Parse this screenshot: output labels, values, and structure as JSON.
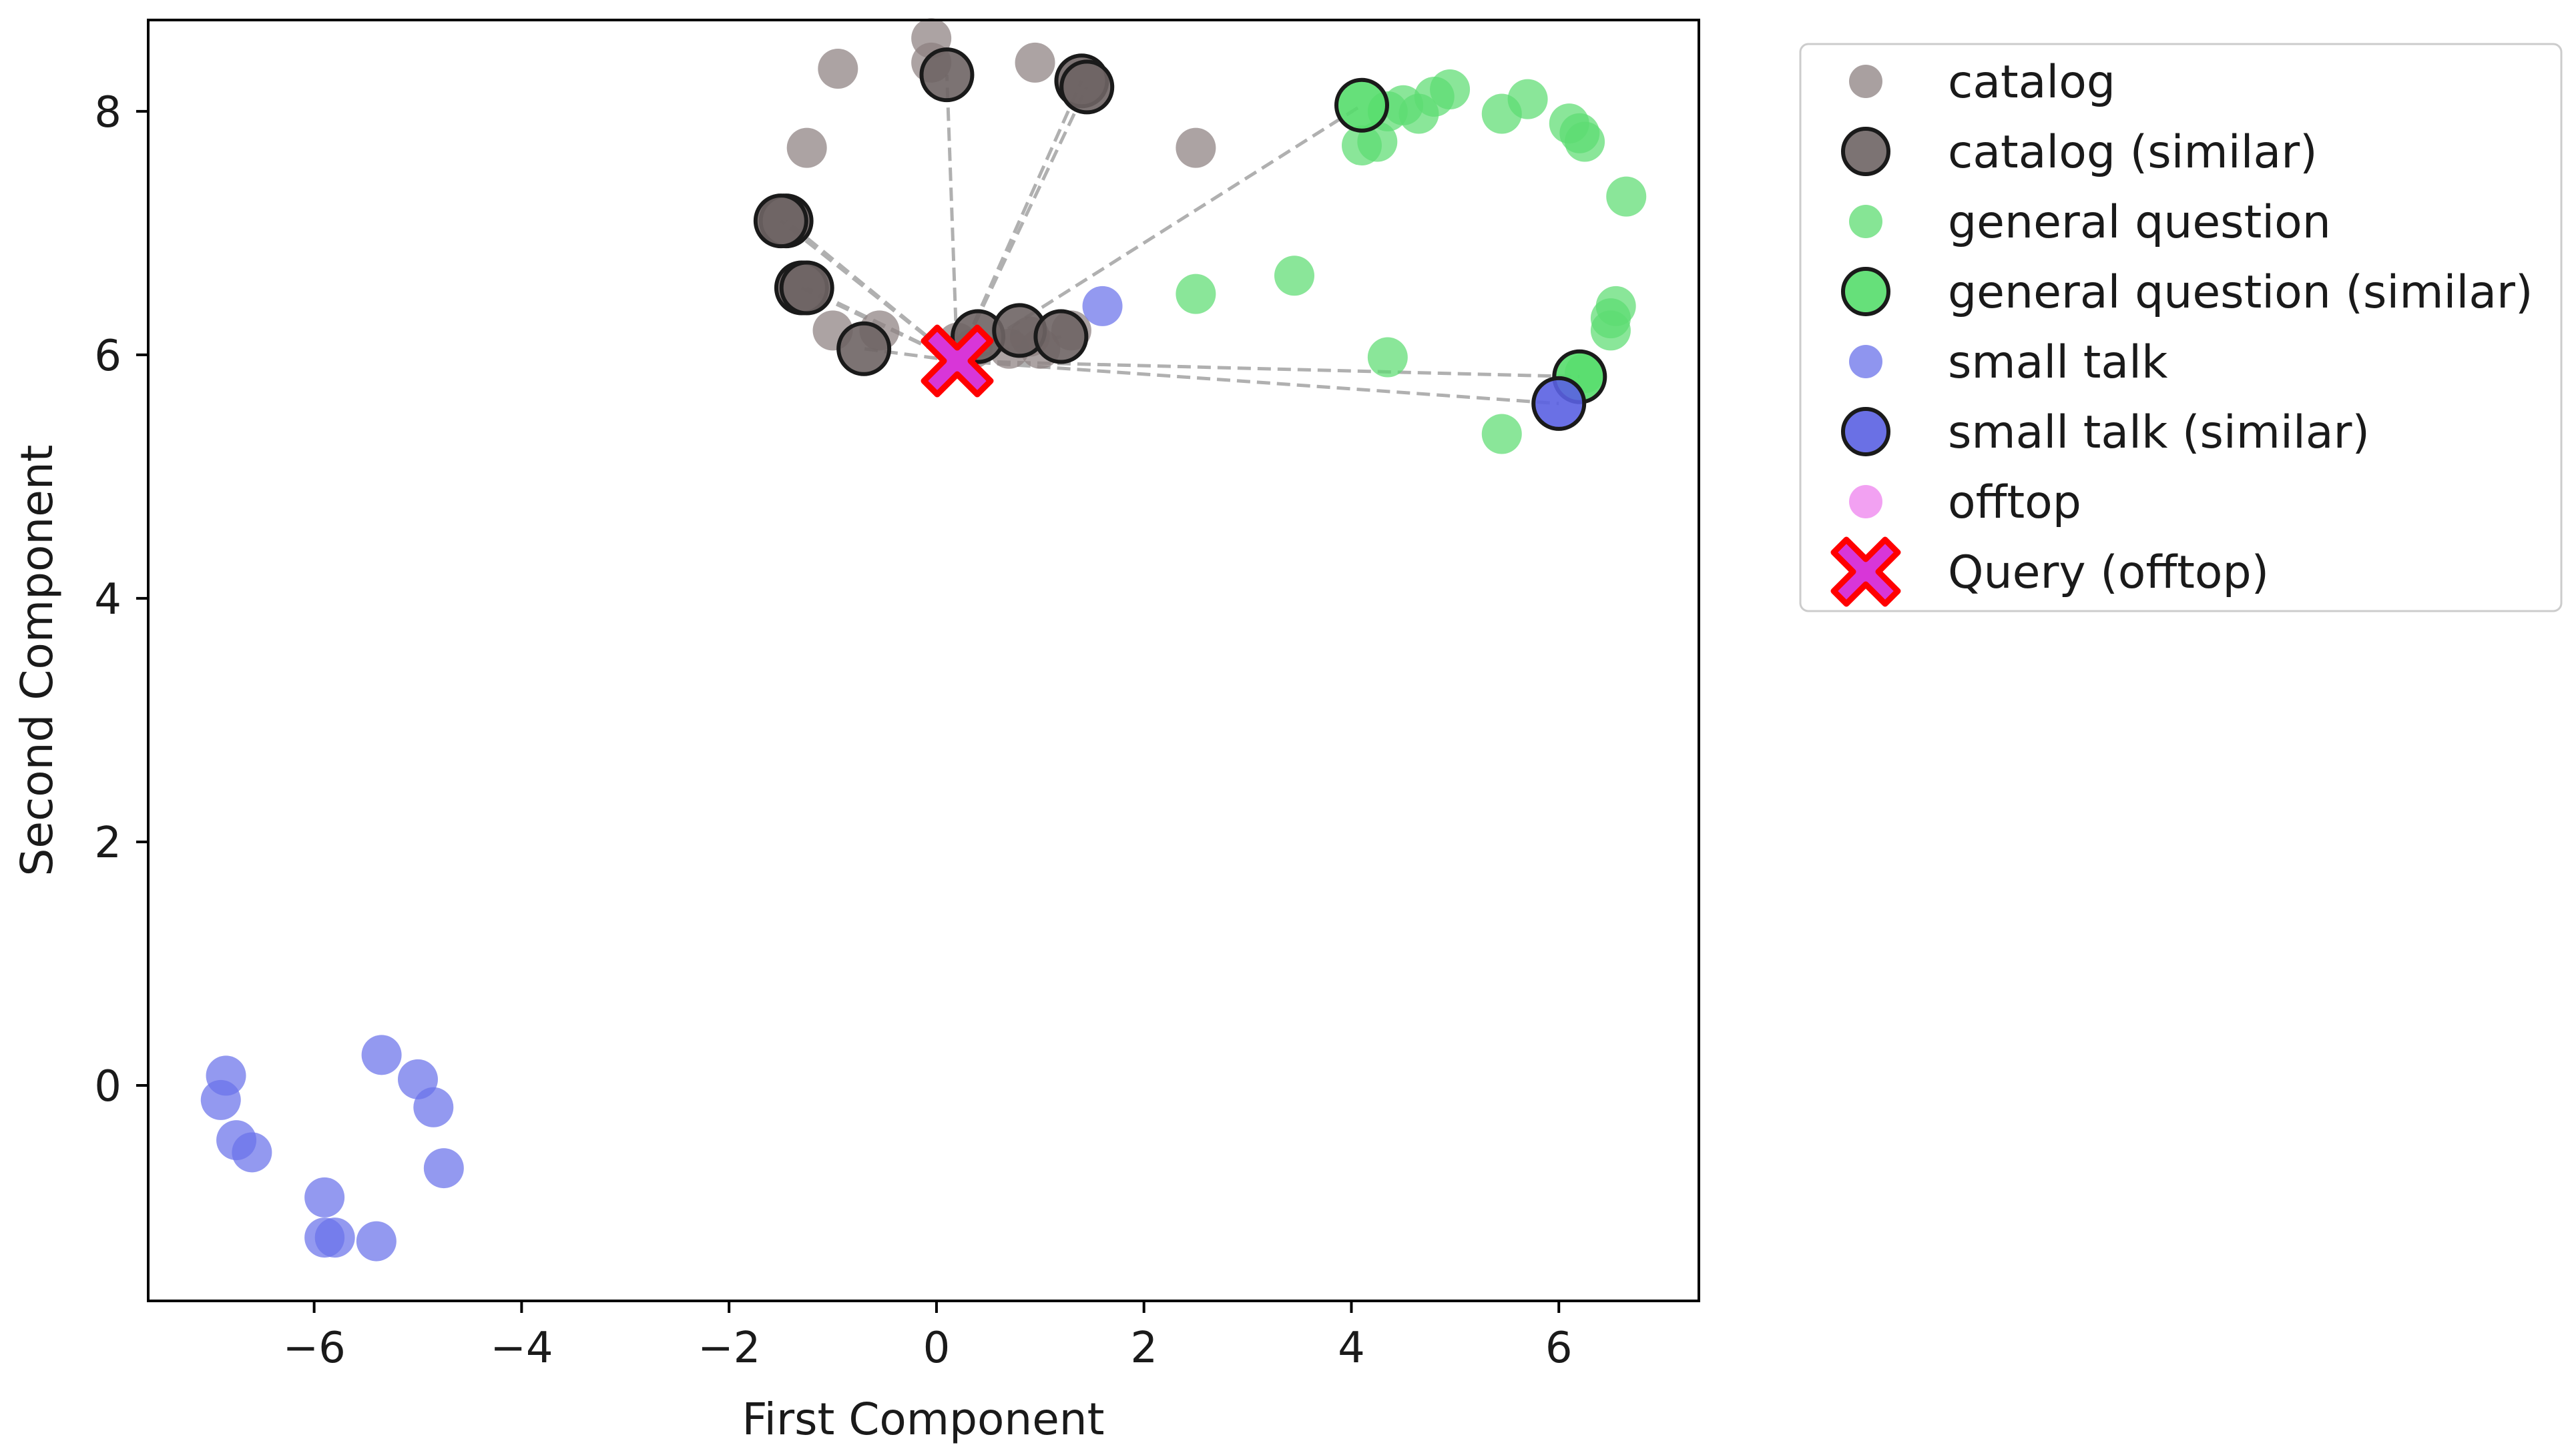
{
  "chart_data": {
    "type": "scatter",
    "title": "",
    "xlabel": "First Component",
    "ylabel": "Second Component",
    "xlim": [
      -7.6,
      7.35
    ],
    "ylim": [
      -1.77,
      8.75
    ],
    "xticks": [
      -6,
      -4,
      -2,
      0,
      2,
      4,
      6
    ],
    "yticks": [
      0,
      2,
      4,
      6,
      8
    ],
    "xtick_labels": [
      "−6",
      "−4",
      "−2",
      "0",
      "2",
      "4",
      "6"
    ],
    "ytick_labels": [
      "0",
      "2",
      "4",
      "6",
      "8"
    ],
    "grid": false,
    "legend_position": "outside-top-right",
    "colors": {
      "catalog": "#8c8080",
      "catalog_similar": "#6e6464",
      "general": "#5ddc72",
      "general_similar": "#55dd6c",
      "small_talk": "#6a72ea",
      "small_talk_similar": "#5a60e2",
      "offtop": "#ee82ee",
      "query_fill": "#d836d8",
      "query_edge": "#ff0000",
      "similar_edge": "#1a1a1a",
      "link_line": "#b0b0b0"
    },
    "query": {
      "label": "Query (offtop)",
      "x": 0.2,
      "y": 5.95
    },
    "series": [
      {
        "name": "catalog",
        "points": [
          [
            -0.05,
            8.6
          ],
          [
            -0.05,
            8.4
          ],
          [
            0.95,
            8.4
          ],
          [
            -0.95,
            8.35
          ],
          [
            -1.25,
            7.7
          ],
          [
            2.5,
            7.7
          ],
          [
            -1.0,
            6.2
          ],
          [
            -0.55,
            6.2
          ],
          [
            0.2,
            6.1
          ],
          [
            0.7,
            6.05
          ],
          [
            1.0,
            6.05
          ],
          [
            0.9,
            6.15
          ],
          [
            1.3,
            6.2
          ],
          [
            0.35,
            6.05
          ]
        ]
      },
      {
        "name": "catalog (similar)",
        "points": [
          [
            0.1,
            8.3
          ],
          [
            1.4,
            8.25
          ],
          [
            1.45,
            8.2
          ],
          [
            -1.45,
            7.1
          ],
          [
            -1.5,
            7.1
          ],
          [
            -1.3,
            6.55
          ],
          [
            -1.25,
            6.55
          ],
          [
            -0.7,
            6.05
          ],
          [
            0.4,
            6.15
          ],
          [
            0.8,
            6.2
          ],
          [
            1.2,
            6.15
          ]
        ]
      },
      {
        "name": "general question",
        "points": [
          [
            4.5,
            8.05
          ],
          [
            4.65,
            7.98
          ],
          [
            4.8,
            8.12
          ],
          [
            4.95,
            8.18
          ],
          [
            4.35,
            8.0
          ],
          [
            5.7,
            8.1
          ],
          [
            5.45,
            7.98
          ],
          [
            6.1,
            7.9
          ],
          [
            6.2,
            7.82
          ],
          [
            6.25,
            7.75
          ],
          [
            4.1,
            7.72
          ],
          [
            4.25,
            7.75
          ],
          [
            6.65,
            7.3
          ],
          [
            3.45,
            6.65
          ],
          [
            2.5,
            6.5
          ],
          [
            6.55,
            6.4
          ],
          [
            6.5,
            6.3
          ],
          [
            6.5,
            6.2
          ],
          [
            4.35,
            5.98
          ],
          [
            6.25,
            5.85
          ],
          [
            5.45,
            5.35
          ]
        ]
      },
      {
        "name": "general question (similar)",
        "points": [
          [
            4.1,
            8.05
          ],
          [
            6.2,
            5.82
          ]
        ]
      },
      {
        "name": "small talk",
        "points": [
          [
            1.6,
            6.4
          ],
          [
            -5.35,
            0.25
          ],
          [
            -6.85,
            0.08
          ],
          [
            -5.0,
            0.05
          ],
          [
            -6.9,
            -0.12
          ],
          [
            -4.85,
            -0.18
          ],
          [
            -6.75,
            -0.45
          ],
          [
            -6.6,
            -0.55
          ],
          [
            -4.75,
            -0.68
          ],
          [
            -5.9,
            -0.92
          ],
          [
            -5.9,
            -1.25
          ],
          [
            -5.8,
            -1.25
          ],
          [
            -5.4,
            -1.28
          ]
        ]
      },
      {
        "name": "small talk (similar)",
        "points": [
          [
            6.0,
            5.6
          ]
        ]
      }
    ],
    "legend": [
      {
        "label": "catalog",
        "marker": "dot",
        "color": "catalog"
      },
      {
        "label": "catalog (similar)",
        "marker": "ring",
        "color": "catalog_similar"
      },
      {
        "label": "general question",
        "marker": "dot",
        "color": "general"
      },
      {
        "label": "general question (similar)",
        "marker": "ring",
        "color": "general_similar"
      },
      {
        "label": "small talk",
        "marker": "dot",
        "color": "small_talk"
      },
      {
        "label": "small talk (similar)",
        "marker": "ring",
        "color": "small_talk_similar"
      },
      {
        "label": "offtop",
        "marker": "dot",
        "color": "offtop"
      },
      {
        "label": "Query (offtop)",
        "marker": "cross",
        "color": "query_fill"
      }
    ]
  }
}
